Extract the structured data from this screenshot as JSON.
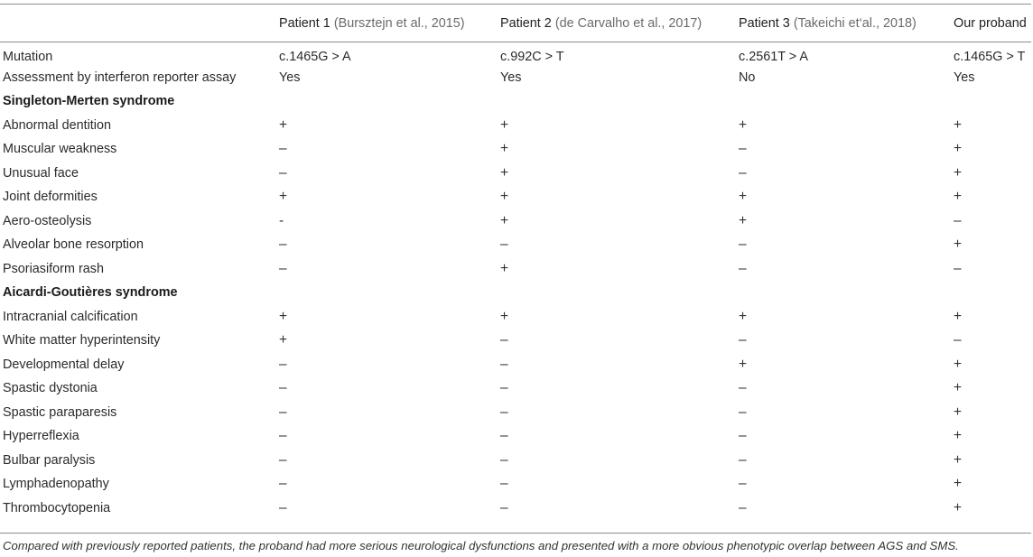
{
  "table": {
    "header": {
      "col0": "",
      "patients": [
        {
          "label": "Patient 1",
          "ref": "(Bursztejn et al., 2015)"
        },
        {
          "label": "Patient 2",
          "ref": "(de Carvalho et al., 2017)"
        },
        {
          "label": "Patient 3",
          "ref": "(Takeichi et‘al., 2018)"
        },
        {
          "label": "Our proband",
          "ref": ""
        }
      ]
    },
    "rows": [
      {
        "label": "Mutation",
        "values": [
          "c.1465G > A",
          "c.992C > T",
          "c.2561T > A",
          "c.1465G > T"
        ]
      },
      {
        "label": "Assessment by interferon reporter assay",
        "values": [
          "Yes",
          "Yes",
          "No",
          "Yes"
        ]
      },
      {
        "section": "Singleton-Merten syndrome"
      },
      {
        "label": "Abnormal dentition",
        "values": [
          "+",
          "+",
          "+",
          "+"
        ]
      },
      {
        "label": "Muscular weakness",
        "values": [
          "–",
          "+",
          "–",
          "+"
        ]
      },
      {
        "label": "Unusual face",
        "values": [
          "–",
          "+",
          "–",
          "+"
        ]
      },
      {
        "label": "Joint deformities",
        "values": [
          "+",
          "+",
          "+",
          "+"
        ]
      },
      {
        "label": "Aero-osteolysis",
        "values": [
          "-",
          "+",
          "+",
          "–"
        ]
      },
      {
        "label": "Alveolar bone resorption",
        "values": [
          "–",
          "–",
          "–",
          "+"
        ]
      },
      {
        "label": "Psoriasiform rash",
        "values": [
          "–",
          "+",
          "–",
          "–"
        ]
      },
      {
        "section": "Aicardi-Goutières syndrome"
      },
      {
        "label": "Intracranial calcification",
        "values": [
          "+",
          "+",
          "+",
          "+"
        ]
      },
      {
        "label": "White matter hyperintensity",
        "values": [
          "+",
          "–",
          "–",
          "–"
        ]
      },
      {
        "label": "Developmental delay",
        "values": [
          "–",
          "–",
          "+",
          "+"
        ]
      },
      {
        "label": "Spastic dystonia",
        "values": [
          "–",
          "–",
          "–",
          "+"
        ]
      },
      {
        "label": "Spastic paraparesis",
        "values": [
          "–",
          "–",
          "–",
          "+"
        ]
      },
      {
        "label": "Hyperreflexia",
        "values": [
          "–",
          "–",
          "–",
          "+"
        ]
      },
      {
        "label": "Bulbar paralysis",
        "values": [
          "–",
          "–",
          "–",
          "+"
        ]
      },
      {
        "label": "Lymphadenopathy",
        "values": [
          "–",
          "–",
          "–",
          "+"
        ]
      },
      {
        "label": "Thrombocytopenia",
        "values": [
          "–",
          "–",
          "–",
          "+"
        ]
      }
    ]
  },
  "caption": "Compared with previously reported patients, the proband had more serious neurological dysfunctions and presented with a more obvious phenotypic overlap between AGS and SMS."
}
